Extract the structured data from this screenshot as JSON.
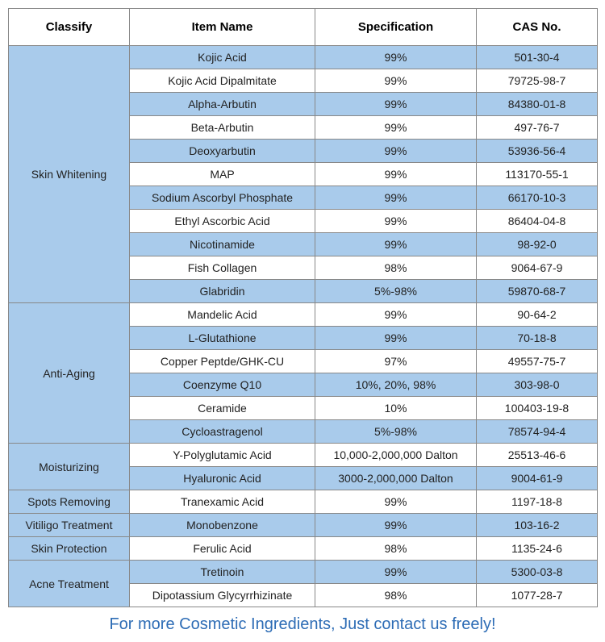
{
  "colors": {
    "stripe_blue": "#a9cbeb",
    "white": "#ffffff",
    "footer_text": "#2d6cb5",
    "border": "#888888",
    "text": "#222222"
  },
  "columns": [
    "Classify",
    "Item Name",
    "Specification",
    "CAS No."
  ],
  "groups": [
    {
      "classify": "Skin Whitening",
      "classify_bg": "#a9cbeb",
      "rows": [
        {
          "item": "Kojic Acid",
          "spec": "99%",
          "cas": "501-30-4",
          "bg": "#a9cbeb"
        },
        {
          "item": "Kojic Acid Dipalmitate",
          "spec": "99%",
          "cas": "79725-98-7",
          "bg": "#ffffff"
        },
        {
          "item": "Alpha-Arbutin",
          "spec": "99%",
          "cas": "84380-01-8",
          "bg": "#a9cbeb"
        },
        {
          "item": "Beta-Arbutin",
          "spec": "99%",
          "cas": "497-76-7",
          "bg": "#ffffff"
        },
        {
          "item": "Deoxyarbutin",
          "spec": "99%",
          "cas": "53936-56-4",
          "bg": "#a9cbeb"
        },
        {
          "item": "MAP",
          "spec": "99%",
          "cas": "113170-55-1",
          "bg": "#ffffff"
        },
        {
          "item": "Sodium Ascorbyl Phosphate",
          "spec": "99%",
          "cas": "66170-10-3",
          "bg": "#a9cbeb"
        },
        {
          "item": "Ethyl Ascorbic Acid",
          "spec": "99%",
          "cas": "86404-04-8",
          "bg": "#ffffff"
        },
        {
          "item": "Nicotinamide",
          "spec": "99%",
          "cas": "98-92-0",
          "bg": "#a9cbeb"
        },
        {
          "item": "Fish Collagen",
          "spec": "98%",
          "cas": "9064-67-9",
          "bg": "#ffffff"
        },
        {
          "item": "Glabridin",
          "spec": "5%-98%",
          "cas": "59870-68-7",
          "bg": "#a9cbeb"
        }
      ]
    },
    {
      "classify": "Anti-Aging",
      "classify_bg": "#a9cbeb",
      "rows": [
        {
          "item": "Mandelic Acid",
          "spec": "99%",
          "cas": "90-64-2",
          "bg": "#ffffff"
        },
        {
          "item": "L-Glutathione",
          "spec": "99%",
          "cas": "70-18-8",
          "bg": "#a9cbeb"
        },
        {
          "item": "Copper Peptde/GHK-CU",
          "spec": "97%",
          "cas": "49557-75-7",
          "bg": "#ffffff"
        },
        {
          "item": "Coenzyme Q10",
          "spec": "10%, 20%, 98%",
          "cas": "303-98-0",
          "bg": "#a9cbeb"
        },
        {
          "item": "Ceramide",
          "spec": "10%",
          "cas": "100403-19-8",
          "bg": "#ffffff"
        },
        {
          "item": "Cycloastragenol",
          "spec": "5%-98%",
          "cas": "78574-94-4",
          "bg": "#a9cbeb"
        }
      ]
    },
    {
      "classify": "Moisturizing",
      "classify_bg": "#a9cbeb",
      "rows": [
        {
          "item": "Y-Polyglutamic Acid",
          "spec": "10,000-2,000,000 Dalton",
          "cas": "25513-46-6",
          "bg": "#ffffff"
        },
        {
          "item": "Hyaluronic Acid",
          "spec": "3000-2,000,000 Dalton",
          "cas": "9004-61-9",
          "bg": "#a9cbeb"
        }
      ]
    },
    {
      "classify": "Spots Removing",
      "classify_bg": "#a9cbeb",
      "rows": [
        {
          "item": "Tranexamic Acid",
          "spec": "99%",
          "cas": "1197-18-8",
          "bg": "#ffffff"
        }
      ]
    },
    {
      "classify": "Vitiligo Treatment",
      "classify_bg": "#a9cbeb",
      "rows": [
        {
          "item": "Monobenzone",
          "spec": "99%",
          "cas": "103-16-2",
          "bg": "#a9cbeb"
        }
      ]
    },
    {
      "classify": "Skin Protection",
      "classify_bg": "#a9cbeb",
      "rows": [
        {
          "item": "Ferulic Acid",
          "spec": "98%",
          "cas": "1135-24-6",
          "bg": "#ffffff"
        }
      ]
    },
    {
      "classify": "Acne Treatment",
      "classify_bg": "#a9cbeb",
      "rows": [
        {
          "item": "Tretinoin",
          "spec": "99%",
          "cas": "5300-03-8",
          "bg": "#a9cbeb"
        },
        {
          "item": "Dipotassium Glycyrrhizinate",
          "spec": "98%",
          "cas": "1077-28-7",
          "bg": "#ffffff"
        }
      ]
    }
  ],
  "footer": "For more Cosmetic Ingredients, Just contact us freely!"
}
